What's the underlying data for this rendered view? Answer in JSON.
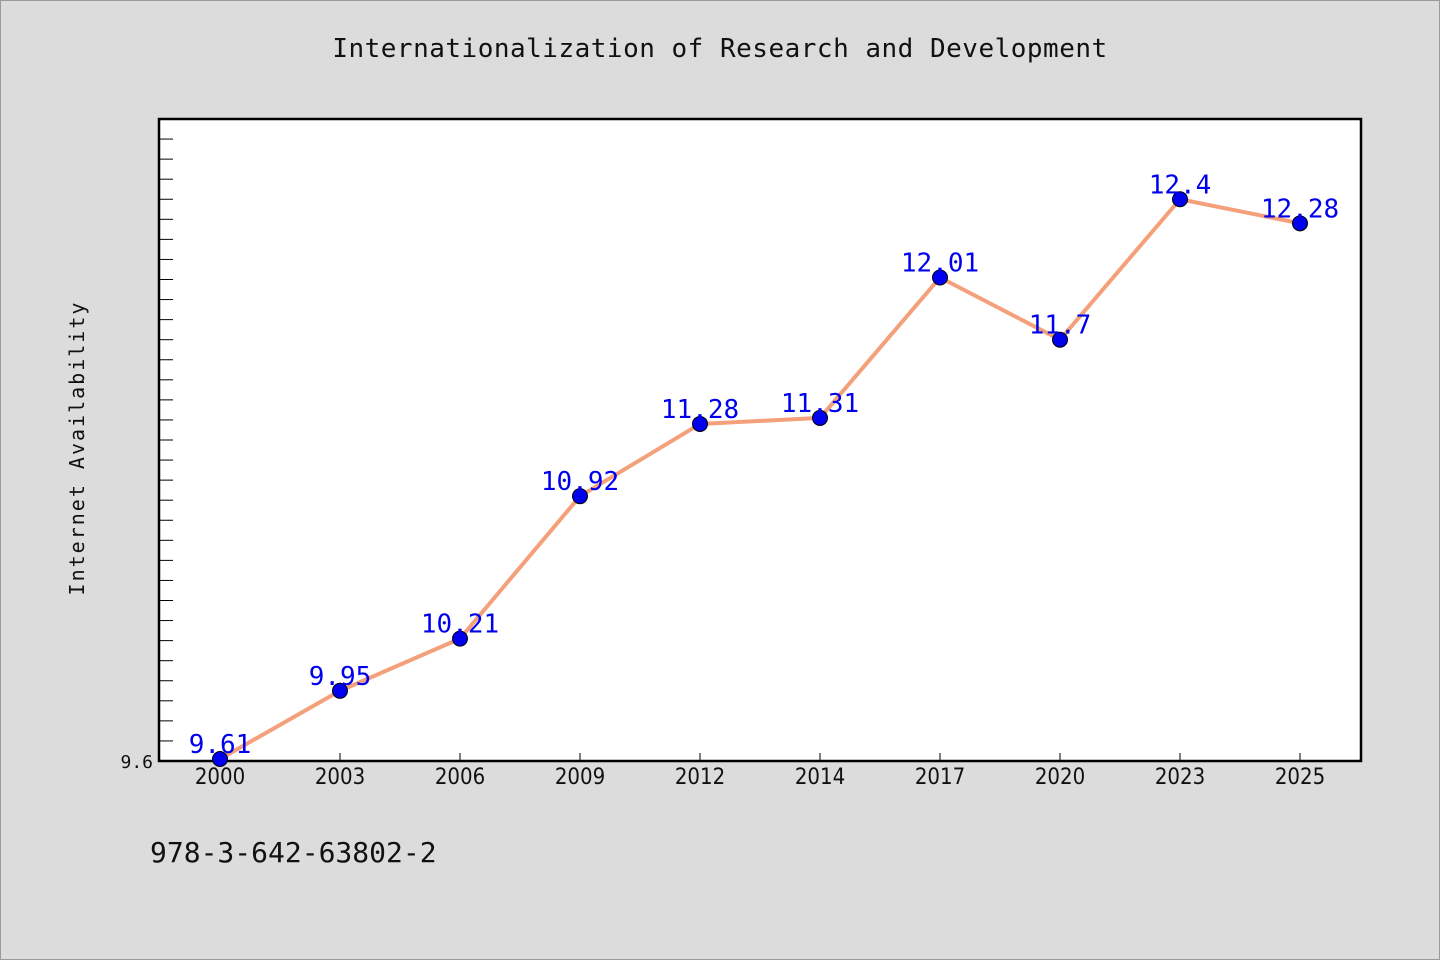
{
  "chart_data": {
    "type": "line",
    "title": "Internationalization of Research and Development",
    "xlabel": "",
    "ylabel": "Internet Availability",
    "categories": [
      "2000",
      "2003",
      "2006",
      "2009",
      "2012",
      "2014",
      "2017",
      "2020",
      "2023",
      "2025"
    ],
    "series": [
      {
        "values": [
          9.61,
          9.95,
          10.21,
          10.92,
          11.28,
          11.31,
          12.01,
          11.7,
          12.4,
          12.28
        ]
      }
    ],
    "data_labels": [
      "9.61",
      "9.95",
      "10.21",
      "10.92",
      "11.28",
      "11.31",
      "12.01",
      "11.7",
      "12.4",
      "12.28"
    ],
    "y_tick_labels": [
      "9.6"
    ],
    "ylim": [
      9.6,
      12.8
    ],
    "grid": false,
    "colors": {
      "line": "#f4a07a",
      "marker": "#0000ee",
      "label": "#0000ee"
    }
  },
  "footer": {
    "isbn": "978-3-642-63802-2"
  }
}
